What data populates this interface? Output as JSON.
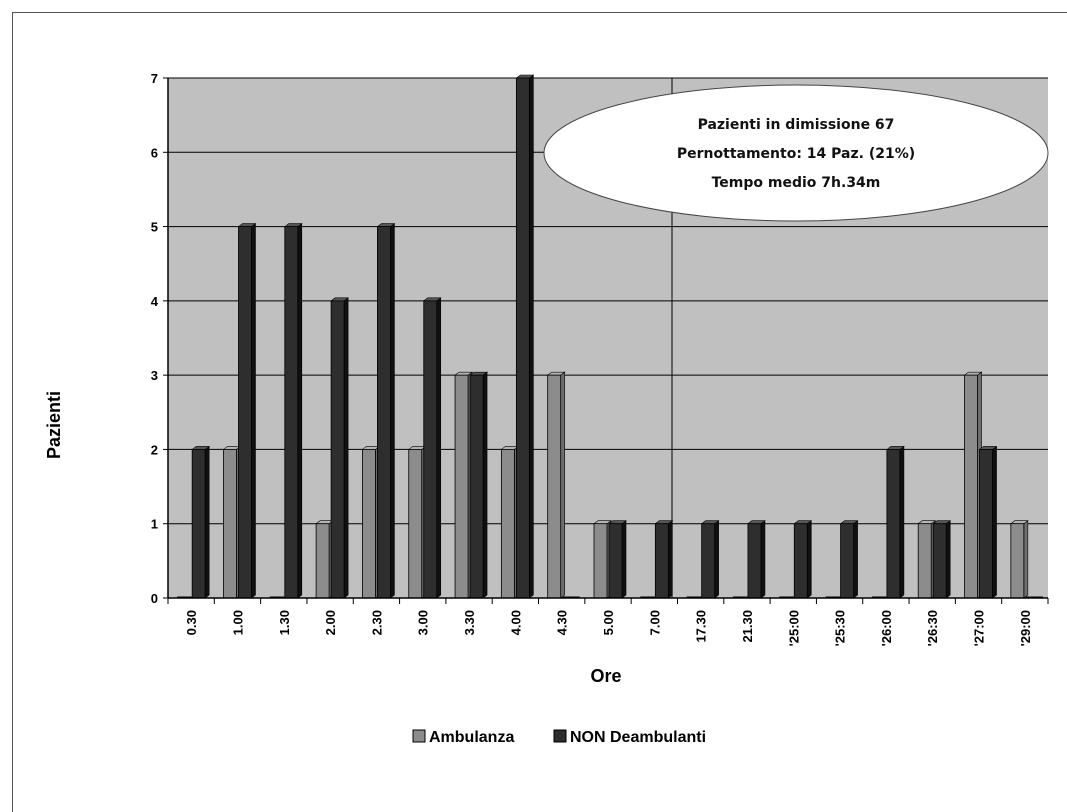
{
  "chart_data": {
    "type": "bar",
    "title": "",
    "xlabel": "Ore",
    "ylabel": "Pazienti",
    "ylim": [
      0,
      7
    ],
    "yticks": [
      0,
      1,
      2,
      3,
      4,
      5,
      6,
      7
    ],
    "grid": true,
    "legend_position": "bottom",
    "categories": [
      "0.30",
      "1.00",
      "1.30",
      "2.00",
      "2.30",
      "3.00",
      "3.30",
      "4.00",
      "4.30",
      "5.00",
      "7.00",
      "17.30",
      "21.30",
      "'25:00",
      "'25:30",
      "'26:00",
      "'26:30",
      "'27:00",
      "'29:00"
    ],
    "series": [
      {
        "name": "Ambulanza",
        "color": "#8c8c8c",
        "values": [
          0,
          2,
          0,
          1,
          2,
          2,
          3,
          2,
          3,
          1,
          0,
          0,
          0,
          0,
          0,
          0,
          1,
          3,
          1
        ]
      },
      {
        "name": "NON Deambulanti",
        "color": "#2e2e2e",
        "values": [
          2,
          5,
          5,
          4,
          5,
          4,
          3,
          7,
          0,
          1,
          1,
          1,
          1,
          1,
          1,
          2,
          1,
          2,
          0
        ]
      }
    ],
    "annotation": {
      "lines": [
        "Pazienti in dimissione 67",
        "Pernottamento: 14 Paz. (21%)",
        "Tempo medio 7h.34m"
      ]
    }
  }
}
